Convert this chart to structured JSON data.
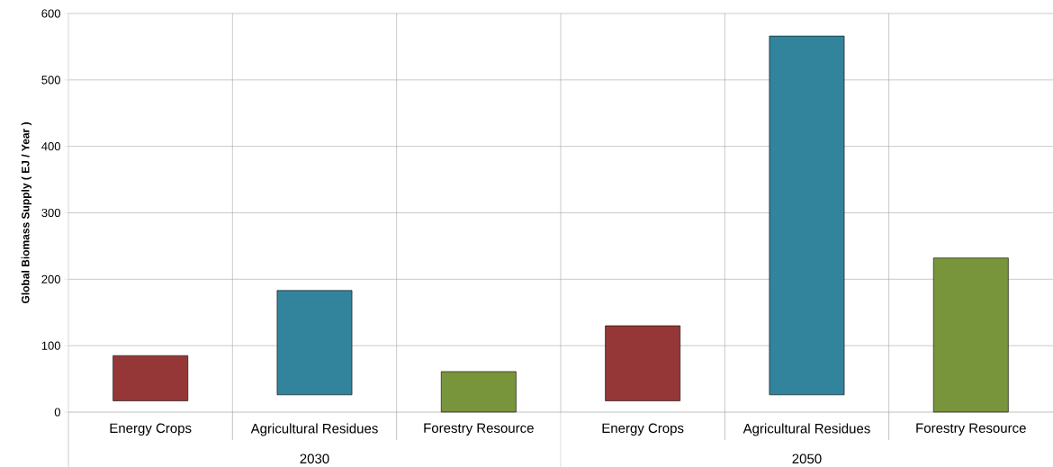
{
  "chart_data": {
    "type": "bar",
    "ylabel": "Global Biomass Supply ( EJ / Year )",
    "categories": [
      "Energy Crops",
      "Agricultural Residues",
      "Forestry Resource",
      "Energy Crops",
      "Agricultural Residues",
      "Forestry Resource"
    ],
    "base": [
      17,
      26,
      0,
      17,
      26,
      0
    ],
    "values": [
      68,
      157,
      61,
      113,
      540,
      232
    ],
    "colors": [
      "#963737",
      "#32849c",
      "#78953c",
      "#963737",
      "#32849c",
      "#78953c"
    ],
    "ylim": [
      0,
      600
    ],
    "yticks": [
      0,
      100,
      200,
      300,
      400,
      500,
      600
    ],
    "grid": true,
    "annotations": [
      "2030",
      "2050"
    ]
  }
}
